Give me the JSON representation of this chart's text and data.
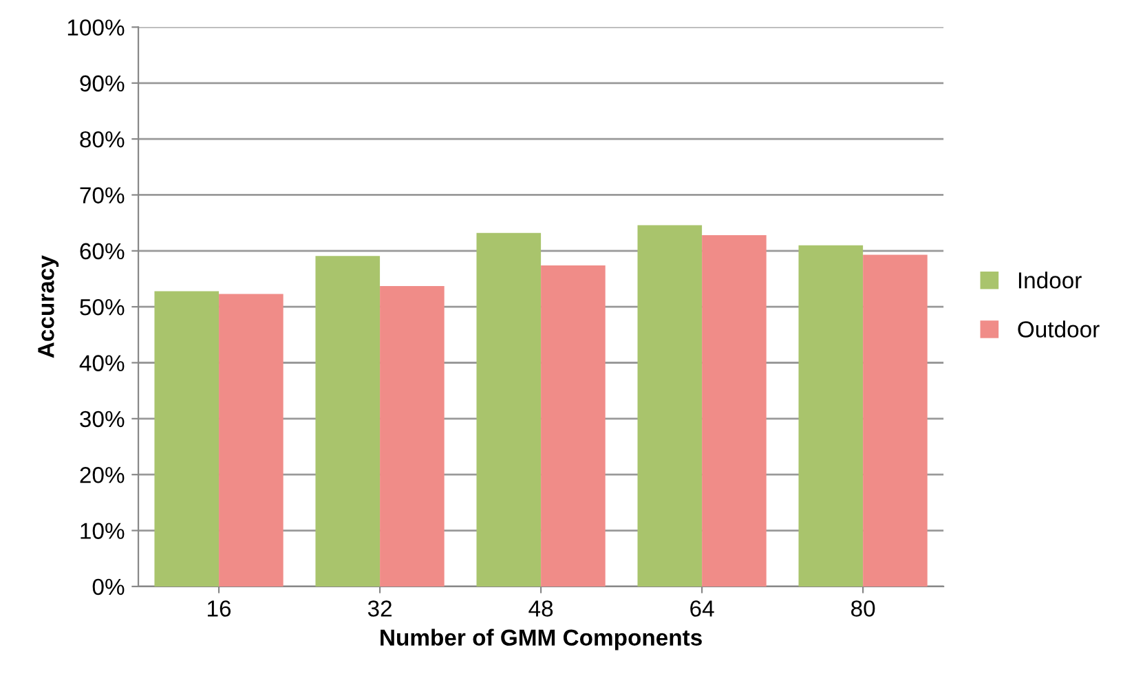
{
  "chart_data": {
    "type": "bar",
    "xlabel": "Number of GMM Components",
    "ylabel": "Accuracy",
    "categories": [
      "16",
      "32",
      "48",
      "64",
      "80"
    ],
    "series": [
      {
        "name": "Indoor",
        "color": "#a9c46c",
        "values": [
          52.8,
          59.1,
          63.2,
          64.6,
          61.0
        ]
      },
      {
        "name": "Outdoor",
        "color": "#f08c88",
        "values": [
          52.3,
          53.7,
          57.4,
          62.8,
          59.3
        ]
      }
    ],
    "ylim": [
      0,
      100
    ],
    "yticks": [
      {
        "value": 0,
        "label": "0%"
      },
      {
        "value": 10,
        "label": "10%"
      },
      {
        "value": 20,
        "label": "20%"
      },
      {
        "value": 30,
        "label": "30%"
      },
      {
        "value": 40,
        "label": "40%"
      },
      {
        "value": 50,
        "label": "50%"
      },
      {
        "value": 60,
        "label": "60%"
      },
      {
        "value": 70,
        "label": "70%"
      },
      {
        "value": 80,
        "label": "80%"
      },
      {
        "value": 90,
        "label": "90%"
      },
      {
        "value": 100,
        "label": "100%"
      }
    ],
    "grid": "y",
    "legend": "right"
  }
}
